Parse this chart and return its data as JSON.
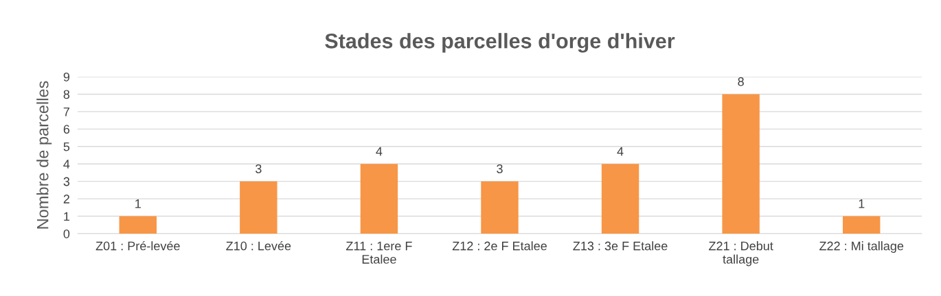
{
  "chart_data": {
    "type": "bar",
    "title": "Stades des parcelles d'orge d'hiver",
    "ylabel": "Nombre de parcelles",
    "categories": [
      "Z01 : Pré-levée",
      "Z10 : Levée",
      "Z11 : 1ere F\nEtalee",
      "Z12 : 2e F Etalee",
      "Z13 : 3e F Etalee",
      "Z21 : Debut\ntallage",
      "Z22 : Mi tallage"
    ],
    "values": [
      1,
      3,
      4,
      3,
      4,
      8,
      1
    ],
    "color": "#f79646",
    "ylim": [
      0,
      9
    ],
    "yticks": [
      0,
      1,
      2,
      3,
      4,
      5,
      6,
      7,
      8,
      9
    ],
    "grid": "y",
    "data_labels": true
  }
}
